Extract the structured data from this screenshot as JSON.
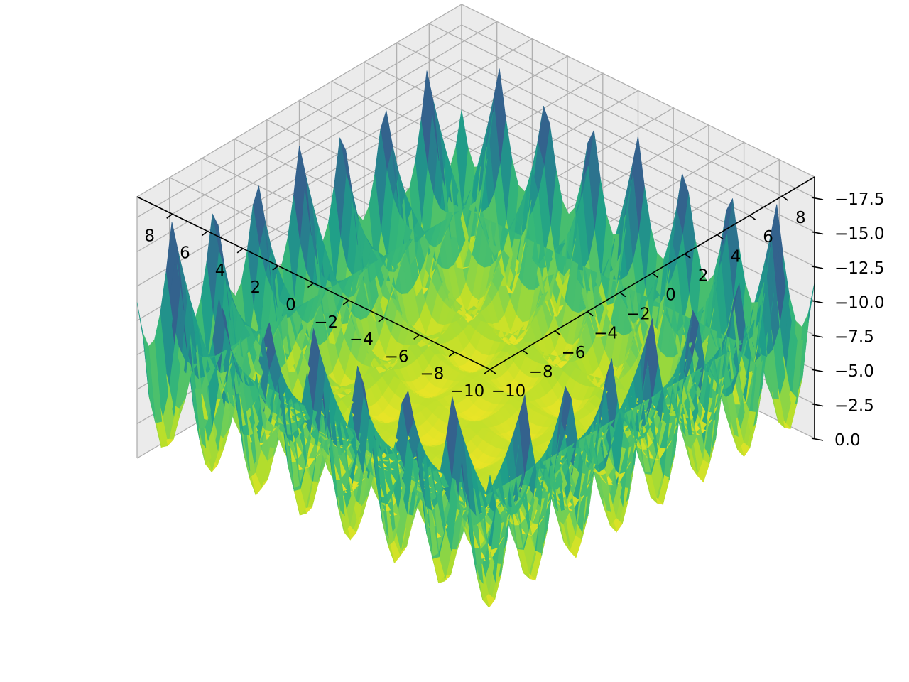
{
  "chart_data": {
    "type": "surface3d",
    "title": "",
    "xlabel": "",
    "ylabel": "",
    "zlabel": "",
    "colormap": "viridis",
    "colormap_stops": [
      "#440154",
      "#482878",
      "#3e4a89",
      "#31688e",
      "#26828e",
      "#1f9e89",
      "#35b779",
      "#6ece58",
      "#b5de2b",
      "#fde725"
    ],
    "pane_color": "#f2f2f2",
    "grid": true,
    "x_range": [
      -10,
      10
    ],
    "y_range": [
      -10,
      10
    ],
    "zlim": [
      -19,
      0
    ],
    "x_ticks": [
      -10,
      -8,
      -6,
      -4,
      -2,
      0,
      2,
      4,
      6,
      8
    ],
    "x_tick_labels": [
      "−10",
      "−8",
      "−6",
      "−4",
      "−2",
      "0",
      "2",
      "4",
      "6",
      "8"
    ],
    "y_ticks": [
      -10,
      -8,
      -6,
      -4,
      -2,
      0,
      2,
      4,
      6,
      8
    ],
    "y_tick_labels": [
      "−10",
      "−8",
      "−6",
      "−4",
      "−2",
      "0",
      "2",
      "4",
      "6",
      "8"
    ],
    "z_ticks": [
      0,
      -2.5,
      -5,
      -7.5,
      -10,
      -12.5,
      -15,
      -17.5
    ],
    "z_tick_labels": [
      "0.0",
      "−2.5",
      "−5.0",
      "−7.5",
      "−10.0",
      "−12.5",
      "−15.0",
      "−17.5"
    ],
    "surface_min": -18.5,
    "surface_max": 0,
    "description_of_shape": "egg-crate surface: near 0 on a periodic grid of peaks, with deep wells reaching about -18.5 at the four corners and along the edges"
  }
}
